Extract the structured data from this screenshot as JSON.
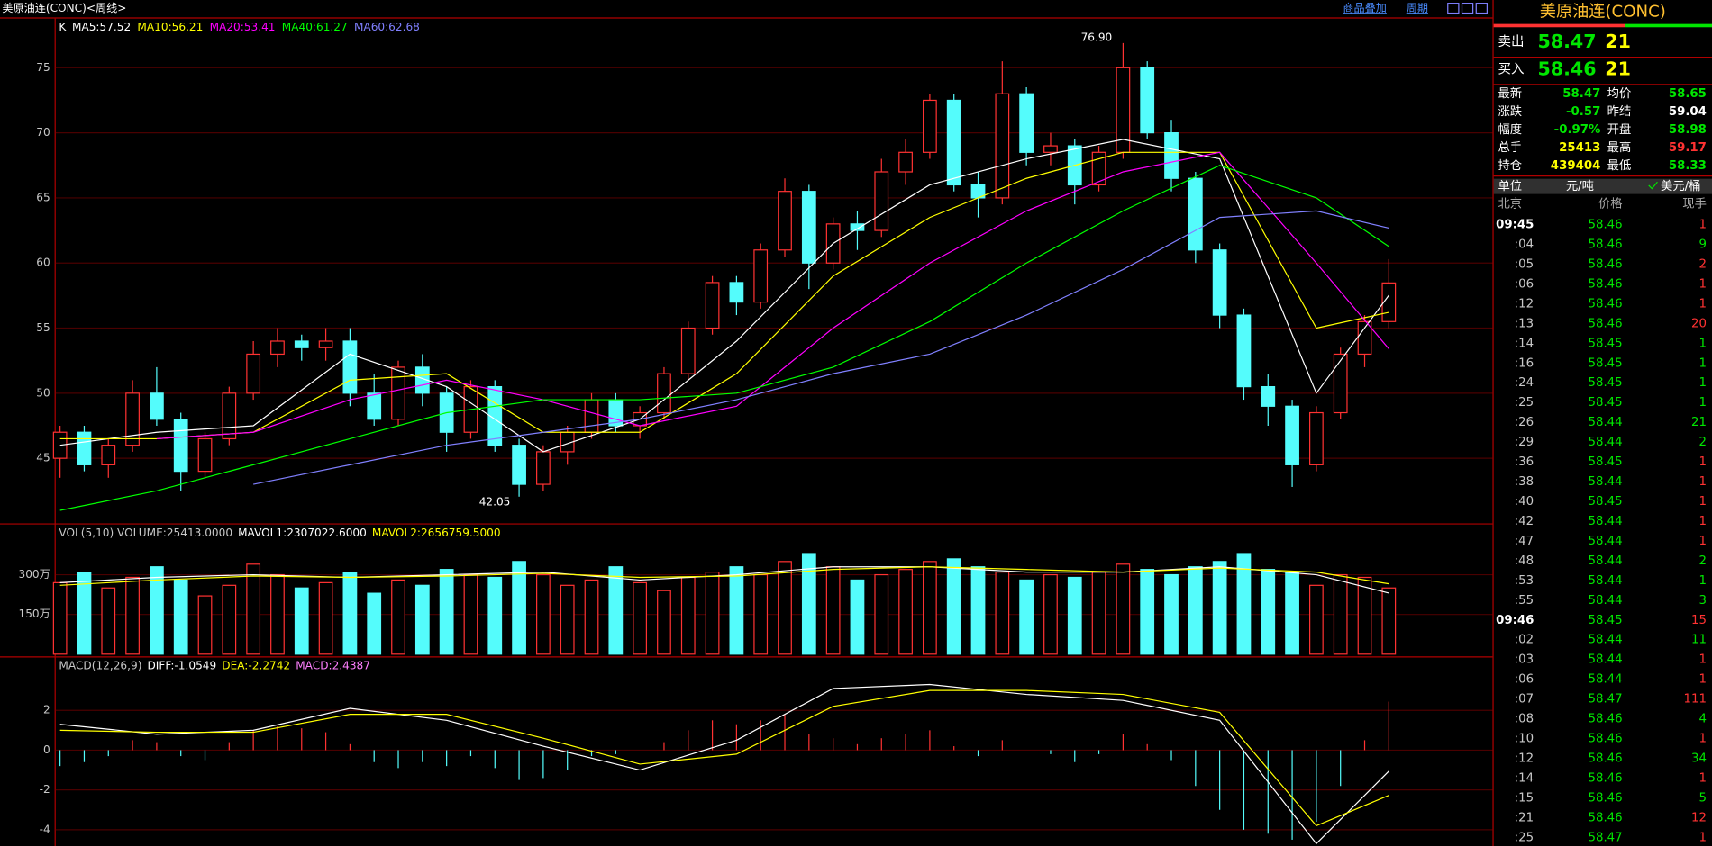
{
  "header": {
    "title": "美原油连(CONC)<周线>",
    "links": [
      "商品叠加",
      "周期"
    ]
  },
  "chart_data": {
    "type": "candlestick",
    "legend": "K",
    "open": [
      45,
      47,
      44.5,
      46,
      50,
      48,
      44,
      46.5,
      50,
      53,
      54,
      53.5,
      54,
      50,
      48,
      52,
      50,
      47,
      50.5,
      46,
      43,
      45.5,
      47,
      49.5,
      47.5,
      48.5,
      51.5,
      55,
      58.5,
      57,
      61,
      65.5,
      60,
      63,
      62.5,
      67,
      68.5,
      72.5,
      66,
      65,
      73,
      68.5,
      69,
      66,
      68.5,
      75,
      70,
      66.5,
      61,
      56,
      50.5,
      49,
      44.5,
      48.5,
      53,
      55.5
    ],
    "high": [
      47.5,
      47.5,
      46.5,
      51,
      52,
      48.5,
      47,
      50.5,
      54,
      55,
      54.5,
      55,
      55,
      51.5,
      52.5,
      53,
      50.5,
      51,
      51,
      46.5,
      46,
      47.5,
      50,
      50,
      49,
      52,
      55.5,
      59,
      59,
      61.5,
      66.5,
      66,
      63.5,
      64,
      68,
      69.5,
      73,
      73,
      67,
      75.5,
      73.5,
      70,
      69.5,
      69,
      76.9,
      75.5,
      71,
      67,
      61.5,
      56.5,
      51.5,
      49.5,
      49,
      53.5,
      56,
      60.3
    ],
    "low": [
      43.5,
      44,
      43.5,
      45.5,
      47.5,
      42.5,
      43.5,
      46,
      49.5,
      52,
      52.5,
      52.5,
      49,
      47.5,
      47.5,
      49,
      45.5,
      46.5,
      45.5,
      42.05,
      42.5,
      44.5,
      46.5,
      47,
      46.5,
      48,
      51,
      54.5,
      56,
      56.5,
      60.5,
      58,
      59.5,
      61,
      62,
      66,
      68,
      65.5,
      63.5,
      64.5,
      67.5,
      67.5,
      64.5,
      65.5,
      68,
      69.5,
      65.5,
      60,
      55,
      49.5,
      47.5,
      42.8,
      44,
      48,
      52,
      55
    ],
    "close": [
      47,
      44.5,
      46,
      50,
      48,
      44,
      46.5,
      50,
      53,
      54,
      53.5,
      54,
      50,
      48,
      52,
      50,
      47,
      50.5,
      46,
      43,
      45.5,
      47,
      49.5,
      47.5,
      48.5,
      51.5,
      55,
      58.5,
      57,
      61,
      65.5,
      60,
      63,
      62.5,
      67,
      68.5,
      72.5,
      66,
      65,
      73,
      68.5,
      69,
      66,
      68.5,
      75,
      70,
      66.5,
      61,
      56,
      50.5,
      49,
      44.5,
      48.5,
      53,
      55.5,
      58.47
    ],
    "up_color": "#ff3232",
    "down_color": "#54fcfc",
    "ylim": [
      40,
      78.7
    ],
    "yticks": [
      45,
      50,
      55,
      60,
      65,
      70,
      75
    ],
    "annotations": [
      {
        "index": 44,
        "value": 76.9,
        "label": "76.90"
      },
      {
        "index": 19,
        "value": 42.05,
        "label": "42.05"
      }
    ],
    "ma_x": [
      0,
      4,
      8,
      12,
      16,
      20,
      24,
      28,
      32,
      36,
      40,
      44,
      48,
      52,
      55
    ],
    "series": [
      {
        "name": "MA5:57.52",
        "color": "#ffffff",
        "values": [
          46,
          47,
          47.5,
          53,
          50.5,
          45.5,
          48,
          54,
          61.5,
          66,
          68,
          69.5,
          68,
          50,
          57.52
        ]
      },
      {
        "name": "MA10:56.21",
        "color": "#ffff00",
        "values": [
          46.5,
          46.5,
          47,
          51,
          51.5,
          47,
          47,
          51.5,
          59,
          63.5,
          66.5,
          68.5,
          68.5,
          55,
          56.21
        ]
      },
      {
        "name": "MA20:53.41",
        "color": "#ff00ff",
        "values": [
          null,
          46.5,
          47,
          49.5,
          51,
          49.5,
          47.5,
          49,
          55,
          60,
          64,
          67,
          68.5,
          60,
          53.41
        ]
      },
      {
        "name": "MA40:61.27",
        "color": "#00ff00",
        "values": [
          41,
          42.5,
          44.5,
          46.5,
          48.5,
          49.5,
          49.5,
          50,
          52,
          55.5,
          60,
          64,
          67.5,
          65,
          61.27
        ]
      },
      {
        "name": "MA60:62.68",
        "color": "#8080ff",
        "values": [
          null,
          null,
          43,
          44.5,
          46,
          47,
          48,
          49.5,
          51.5,
          53,
          56,
          59.5,
          63.5,
          64,
          62.68
        ]
      }
    ],
    "volume": {
      "title": "VOL(5,10) VOLUME:25413.0000",
      "values": [
        270,
        310,
        250,
        290,
        330,
        280,
        220,
        260,
        340,
        300,
        250,
        270,
        310,
        230,
        280,
        260,
        320,
        300,
        290,
        350,
        300,
        260,
        280,
        330,
        270,
        240,
        290,
        310,
        330,
        300,
        350,
        380,
        330,
        280,
        300,
        320,
        350,
        360,
        330,
        310,
        280,
        300,
        290,
        310,
        340,
        320,
        300,
        330,
        350,
        380,
        320,
        310,
        260,
        300,
        290,
        250
      ],
      "ylim": [
        0,
        490
      ],
      "yticks": [
        {
          "value": 150,
          "label": "150万"
        },
        {
          "value": 300,
          "label": "300万"
        }
      ],
      "series": [
        {
          "name": "MAVOL1:2307022.6000",
          "color": "#ffffff",
          "values": [
            270,
            290,
            300,
            290,
            300,
            310,
            280,
            300,
            330,
            330,
            310,
            310,
            330,
            300,
            230.7
          ]
        },
        {
          "name": "MAVOL2:2656759.5000",
          "color": "#ffff00",
          "values": [
            260,
            280,
            295,
            290,
            295,
            305,
            290,
            295,
            320,
            330,
            320,
            310,
            325,
            310,
            265.7
          ]
        }
      ]
    },
    "macd": {
      "title": "MACD(12,26,9)",
      "ylim": [
        -4.82,
        4.66
      ],
      "yticks": [
        2,
        0,
        -2,
        -4
      ],
      "histogram": {
        "name": "MACD:2.4387",
        "values": [
          -0.8,
          -0.6,
          -0.3,
          0.5,
          0.4,
          -0.3,
          -0.5,
          0.4,
          1.0,
          1.2,
          1.1,
          0.9,
          0.3,
          -0.6,
          -0.9,
          -0.6,
          -0.8,
          -0.3,
          -0.9,
          -1.5,
          -1.4,
          -1.0,
          -0.3,
          -0.2,
          0.0,
          0.4,
          1.0,
          1.5,
          1.3,
          1.5,
          1.8,
          0.8,
          0.6,
          0.3,
          0.6,
          0.8,
          1.0,
          0.2,
          -0.3,
          0.5,
          0.0,
          -0.2,
          -0.6,
          -0.2,
          0.8,
          0.3,
          -0.5,
          -1.8,
          -3.0,
          -4.0,
          -4.2,
          -4.5,
          -3.6,
          -1.8,
          0.5,
          2.4387
        ]
      },
      "series": [
        {
          "name": "DIFF:-1.0549",
          "color": "#ffffff",
          "values": [
            1.3,
            0.8,
            1.0,
            2.1,
            1.5,
            0.2,
            -1.0,
            0.5,
            3.1,
            3.3,
            2.8,
            2.5,
            1.5,
            -4.7,
            -1.0549
          ]
        },
        {
          "name": "DEA:-2.2742",
          "color": "#ffff00",
          "values": [
            1.0,
            0.9,
            0.9,
            1.8,
            1.8,
            0.6,
            -0.7,
            -0.2,
            2.2,
            3.0,
            3.0,
            2.8,
            1.9,
            -3.8,
            -2.2742
          ]
        }
      ]
    }
  },
  "quote_panel": {
    "title": "美原油连(CONC)",
    "sell": {
      "label": "卖出",
      "price": "58.47",
      "volume": "21"
    },
    "buy": {
      "label": "买入",
      "price": "58.46",
      "volume": "21"
    },
    "stats": [
      {
        "label": "最新",
        "value": "58.47",
        "color": "#00e600"
      },
      {
        "label": "均价",
        "value": "58.65",
        "color": "#00e600"
      },
      {
        "label": "涨跌",
        "value": "-0.57",
        "color": "#00e600"
      },
      {
        "label": "昨结",
        "value": "59.04",
        "color": "#ffffff"
      },
      {
        "label": "幅度",
        "value": "-0.97%",
        "color": "#00e600"
      },
      {
        "label": "开盘",
        "value": "58.98",
        "color": "#00e600"
      },
      {
        "label": "总手",
        "value": "25413",
        "color": "#ffff00"
      },
      {
        "label": "最高",
        "value": "59.17",
        "color": "#ff3232"
      },
      {
        "label": "持仓",
        "value": "439404",
        "color": "#ffff00"
      },
      {
        "label": "最低",
        "value": "58.33",
        "color": "#00e600"
      }
    ],
    "unit": [
      "单位",
      "元/吨",
      "美元/桶"
    ],
    "columns": [
      "北京",
      "价格",
      "现手"
    ],
    "ticks": [
      {
        "time": "09:45",
        "price": "58.46",
        "volume": "1",
        "color": "#ff3232"
      },
      {
        "time": ":04",
        "price": "58.46",
        "volume": "9",
        "color": "#00e600"
      },
      {
        "time": ":05",
        "price": "58.46",
        "volume": "2",
        "color": "#ff3232"
      },
      {
        "time": ":06",
        "price": "58.46",
        "volume": "1",
        "color": "#ff3232"
      },
      {
        "time": ":12",
        "price": "58.46",
        "volume": "1",
        "color": "#ff3232"
      },
      {
        "time": ":13",
        "price": "58.46",
        "volume": "20",
        "color": "#ff3232"
      },
      {
        "time": ":14",
        "price": "58.45",
        "volume": "1",
        "color": "#00e600"
      },
      {
        "time": ":16",
        "price": "58.45",
        "volume": "1",
        "color": "#00e600"
      },
      {
        "time": ":24",
        "price": "58.45",
        "volume": "1",
        "color": "#00e600"
      },
      {
        "time": ":25",
        "price": "58.45",
        "volume": "1",
        "color": "#00e600"
      },
      {
        "time": ":26",
        "price": "58.44",
        "volume": "21",
        "color": "#00e600"
      },
      {
        "time": ":29",
        "price": "58.44",
        "volume": "2",
        "color": "#00e600"
      },
      {
        "time": ":36",
        "price": "58.45",
        "volume": "1",
        "color": "#ff3232"
      },
      {
        "time": ":38",
        "price": "58.44",
        "volume": "1",
        "color": "#ff3232"
      },
      {
        "time": ":40",
        "price": "58.45",
        "volume": "1",
        "color": "#ff3232"
      },
      {
        "time": ":42",
        "price": "58.44",
        "volume": "1",
        "color": "#ff3232"
      },
      {
        "time": ":47",
        "price": "58.44",
        "volume": "1",
        "color": "#ff3232"
      },
      {
        "time": ":48",
        "price": "58.44",
        "volume": "2",
        "color": "#00e600"
      },
      {
        "time": ":53",
        "price": "58.44",
        "volume": "1",
        "color": "#00e600"
      },
      {
        "time": ":55",
        "price": "58.44",
        "volume": "3",
        "color": "#00e600"
      },
      {
        "time": "09:46",
        "price": "58.45",
        "volume": "15",
        "color": "#ff3232"
      },
      {
        "time": ":02",
        "price": "58.44",
        "volume": "11",
        "color": "#00e600"
      },
      {
        "time": ":03",
        "price": "58.44",
        "volume": "1",
        "color": "#ff3232"
      },
      {
        "time": ":06",
        "price": "58.44",
        "volume": "1",
        "color": "#ff3232"
      },
      {
        "time": ":07",
        "price": "58.47",
        "volume": "111",
        "color": "#ff3232"
      },
      {
        "time": ":08",
        "price": "58.46",
        "volume": "4",
        "color": "#00e600"
      },
      {
        "time": ":10",
        "price": "58.46",
        "volume": "1",
        "color": "#ff3232"
      },
      {
        "time": ":12",
        "price": "58.46",
        "volume": "34",
        "color": "#00e600"
      },
      {
        "time": ":14",
        "price": "58.46",
        "volume": "1",
        "color": "#ff3232"
      },
      {
        "time": ":15",
        "price": "58.46",
        "volume": "5",
        "color": "#00e600"
      },
      {
        "time": ":21",
        "price": "58.46",
        "volume": "12",
        "color": "#ff3232"
      },
      {
        "time": ":25",
        "price": "58.47",
        "volume": "1",
        "color": "#ff3232"
      }
    ]
  }
}
